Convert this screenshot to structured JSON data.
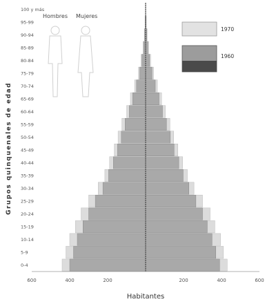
{
  "chart_data": {
    "type": "bar",
    "orientation": "population-pyramid",
    "ylabel": "Grupos quinquenales de edad",
    "xlabel": "Habitantes",
    "gender_labels": {
      "left": "Hombres",
      "right": "Mujeres"
    },
    "categories": [
      "0-4",
      "5-9",
      "10-14",
      "15-19",
      "20-24",
      "25-29",
      "30-34",
      "35-39",
      "40-44",
      "45-49",
      "50-54",
      "55-59",
      "60-64",
      "65-69",
      "70-74",
      "75-79",
      "80-84",
      "85-89",
      "90-94",
      "95-99",
      "100 y más"
    ],
    "x_ticks": [
      {
        "value": -600000,
        "label": "600"
      },
      {
        "value": -400000,
        "label": "400"
      },
      {
        "value": -200000,
        "label": "200"
      },
      {
        "value": 200000,
        "label": "200"
      },
      {
        "value": 400000,
        "label": "400"
      },
      {
        "value": 600000,
        "label": "600"
      }
    ],
    "xlim": [
      -600000,
      600000
    ],
    "series": [
      {
        "name": "1970",
        "color": "#dcdcdc",
        "male": [
          440000,
          420000,
          400000,
          370000,
          340000,
          300000,
          250000,
          215000,
          190000,
          165000,
          145000,
          125000,
          100000,
          80000,
          58000,
          38000,
          24000,
          14000,
          7000,
          3000,
          1000
        ],
        "female": [
          430000,
          410000,
          395000,
          365000,
          340000,
          300000,
          255000,
          220000,
          195000,
          170000,
          148000,
          128000,
          104000,
          84000,
          62000,
          42000,
          27000,
          16000,
          8000,
          3500,
          1200
        ]
      },
      {
        "name": "1960",
        "color": "#a9a9a9",
        "male": [
          400000,
          380000,
          360000,
          330000,
          300000,
          265000,
          225000,
          195000,
          170000,
          148000,
          128000,
          108000,
          86000,
          68000,
          48000,
          31000,
          19000,
          10000,
          5000,
          2000,
          800
        ],
        "female": [
          390000,
          370000,
          350000,
          325000,
          300000,
          265000,
          228000,
          198000,
          175000,
          150000,
          130000,
          110000,
          89000,
          71000,
          51000,
          34000,
          21000,
          12000,
          6000,
          2500,
          900
        ]
      }
    ],
    "legend": {
      "position": "top-right",
      "entries": [
        "1970",
        "1960"
      ]
    }
  }
}
